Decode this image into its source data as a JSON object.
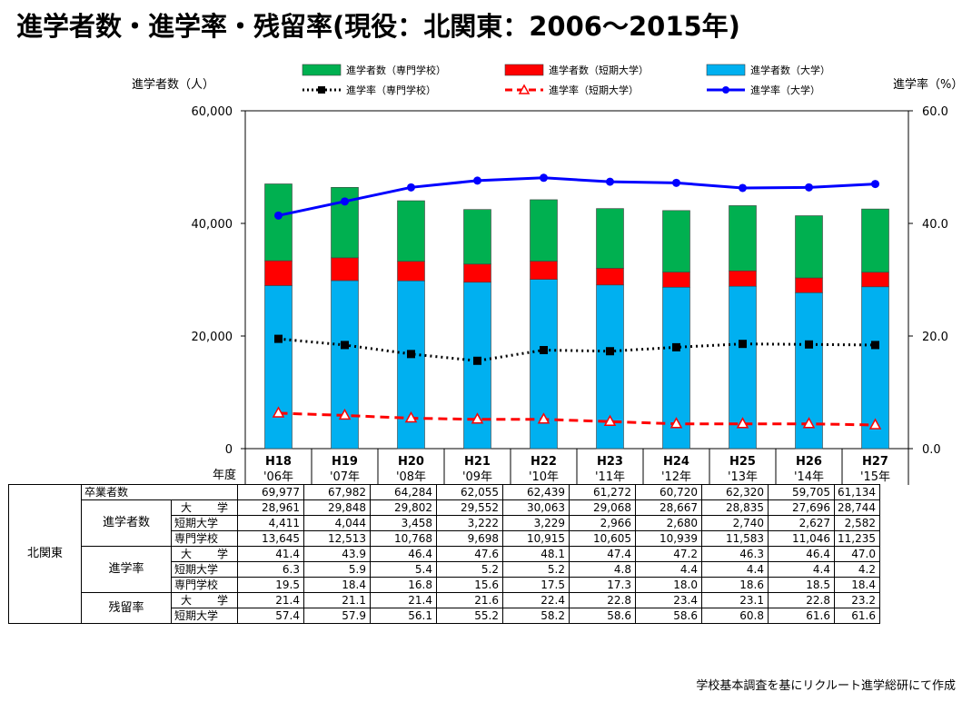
{
  "title": "進学者数・進学率・残留率(現役：北関東：2006～2015年)",
  "source_note": "学校基本調査を基にリクルート進学総研にて作成",
  "chart_data": {
    "type": "bar",
    "stacked": true,
    "combo": "bar+line",
    "y_left_label": "進学者数（人）",
    "y_right_label": "進学率（%）",
    "x_axis_label": "年度",
    "y_left_lim": [
      0,
      60000
    ],
    "y_left_ticks": [
      "0",
      "20,000",
      "40,000",
      "60,000"
    ],
    "y_right_lim": [
      0,
      60
    ],
    "y_right_ticks": [
      "0.0",
      "20.0",
      "40.0",
      "60.0"
    ],
    "grid": false,
    "legend_position": "top",
    "categories": [
      [
        "H18",
        "'06年"
      ],
      [
        "H19",
        "'07年"
      ],
      [
        "H20",
        "'08年"
      ],
      [
        "H21",
        "'09年"
      ],
      [
        "H22",
        "'10年"
      ],
      [
        "H23",
        "'11年"
      ],
      [
        "H24",
        "'12年"
      ],
      [
        "H25",
        "'13年"
      ],
      [
        "H26",
        "'14年"
      ],
      [
        "H27",
        "'15年"
      ]
    ],
    "bar_series": [
      {
        "name": "進学者数（大学）",
        "color": "#00b0f0",
        "values": [
          28961,
          29848,
          29802,
          29552,
          30063,
          29068,
          28667,
          28835,
          27696,
          28744
        ]
      },
      {
        "name": "進学者数（短期大学）",
        "color": "#ff0000",
        "values": [
          4411,
          4044,
          3458,
          3222,
          3229,
          2966,
          2680,
          2740,
          2627,
          2582
        ]
      },
      {
        "name": "進学者数（専門学校）",
        "color": "#00b050",
        "values": [
          13645,
          12513,
          10768,
          9698,
          10915,
          10605,
          10939,
          11583,
          11046,
          11235
        ]
      }
    ],
    "line_series": [
      {
        "name": "進学率（大学）",
        "color": "#0000ff",
        "style": "solid",
        "marker": "circle",
        "values": [
          41.4,
          43.9,
          46.4,
          47.6,
          48.1,
          47.4,
          47.2,
          46.3,
          46.4,
          47.0
        ]
      },
      {
        "name": "進学率（短期大学）",
        "color": "#ff0000",
        "style": "dashed",
        "marker": "triangle",
        "values": [
          6.3,
          5.9,
          5.4,
          5.2,
          5.2,
          4.8,
          4.4,
          4.4,
          4.4,
          4.2
        ]
      },
      {
        "name": "進学率（専門学校）",
        "color": "#000000",
        "style": "dotted",
        "marker": "square",
        "values": [
          19.5,
          18.4,
          16.8,
          15.6,
          17.5,
          17.3,
          18.0,
          18.6,
          18.5,
          18.4
        ]
      }
    ],
    "legend": [
      {
        "label": "進学者数（専門学校）",
        "kind": "bar",
        "color": "#00b050"
      },
      {
        "label": "進学者数（短期大学）",
        "kind": "bar",
        "color": "#ff0000"
      },
      {
        "label": "進学者数（大学）",
        "kind": "bar",
        "color": "#00b0f0"
      },
      {
        "label": "進学率（専門学校）",
        "kind": "line",
        "color": "#000000",
        "style": "dotted",
        "marker": "square"
      },
      {
        "label": "進学率（短期大学）",
        "kind": "line",
        "color": "#ff0000",
        "style": "dashed",
        "marker": "triangle"
      },
      {
        "label": "進学率（大学）",
        "kind": "line",
        "color": "#0000ff",
        "style": "solid",
        "marker": "circle"
      }
    ]
  },
  "table": {
    "region": "北関東",
    "groups": [
      {
        "label": "",
        "rows": [
          {
            "label": "卒業者数",
            "values": [
              "69,977",
              "67,982",
              "64,284",
              "62,055",
              "62,439",
              "61,272",
              "60,720",
              "62,320",
              "59,705",
              "61,134"
            ]
          }
        ]
      },
      {
        "label": "進学者数",
        "rows": [
          {
            "label": "大学",
            "values": [
              "28,961",
              "29,848",
              "29,802",
              "29,552",
              "30,063",
              "29,068",
              "28,667",
              "28,835",
              "27,696",
              "28,744"
            ]
          },
          {
            "label": "短期大学",
            "values": [
              "4,411",
              "4,044",
              "3,458",
              "3,222",
              "3,229",
              "2,966",
              "2,680",
              "2,740",
              "2,627",
              "2,582"
            ]
          },
          {
            "label": "専門学校",
            "values": [
              "13,645",
              "12,513",
              "10,768",
              "9,698",
              "10,915",
              "10,605",
              "10,939",
              "11,583",
              "11,046",
              "11,235"
            ]
          }
        ]
      },
      {
        "label": "進学率",
        "rows": [
          {
            "label": "大学",
            "values": [
              "41.4",
              "43.9",
              "46.4",
              "47.6",
              "48.1",
              "47.4",
              "47.2",
              "46.3",
              "46.4",
              "47.0"
            ]
          },
          {
            "label": "短期大学",
            "values": [
              "6.3",
              "5.9",
              "5.4",
              "5.2",
              "5.2",
              "4.8",
              "4.4",
              "4.4",
              "4.4",
              "4.2"
            ]
          },
          {
            "label": "専門学校",
            "values": [
              "19.5",
              "18.4",
              "16.8",
              "15.6",
              "17.5",
              "17.3",
              "18.0",
              "18.6",
              "18.5",
              "18.4"
            ]
          }
        ]
      },
      {
        "label": "残留率",
        "rows": [
          {
            "label": "大学",
            "values": [
              "21.4",
              "21.1",
              "21.4",
              "21.6",
              "22.4",
              "22.8",
              "23.4",
              "23.1",
              "22.8",
              "23.2"
            ]
          },
          {
            "label": "短期大学",
            "values": [
              "57.4",
              "57.9",
              "56.1",
              "55.2",
              "58.2",
              "58.6",
              "58.6",
              "60.8",
              "61.6",
              "61.6"
            ]
          }
        ]
      }
    ]
  }
}
